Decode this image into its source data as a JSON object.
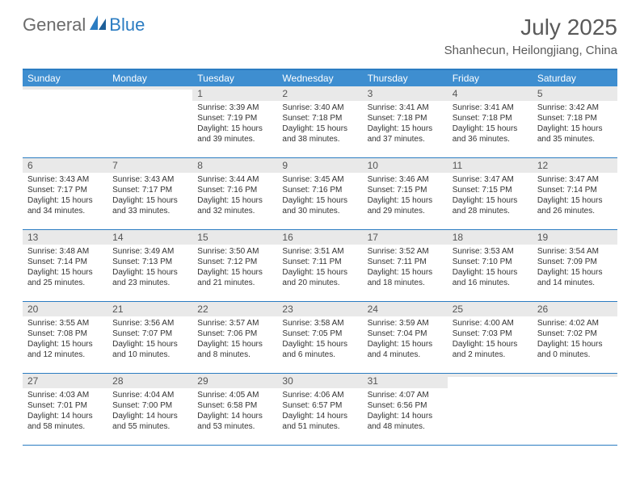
{
  "brand": {
    "part1": "General",
    "part2": "Blue"
  },
  "title": "July 2025",
  "location": "Shanhecun, Heilongjiang, China",
  "colors": {
    "header_bg": "#3e8ed0",
    "border": "#2b7cc2",
    "daynum_bg": "#e9e9e9",
    "text_muted": "#5a5a5a",
    "text_body": "#333333"
  },
  "weekdays": [
    "Sunday",
    "Monday",
    "Tuesday",
    "Wednesday",
    "Thursday",
    "Friday",
    "Saturday"
  ],
  "weeks": [
    [
      {
        "n": "",
        "sunrise": "",
        "sunset": "",
        "daylight1": "",
        "daylight2": ""
      },
      {
        "n": "",
        "sunrise": "",
        "sunset": "",
        "daylight1": "",
        "daylight2": ""
      },
      {
        "n": "1",
        "sunrise": "Sunrise: 3:39 AM",
        "sunset": "Sunset: 7:19 PM",
        "daylight1": "Daylight: 15 hours",
        "daylight2": "and 39 minutes."
      },
      {
        "n": "2",
        "sunrise": "Sunrise: 3:40 AM",
        "sunset": "Sunset: 7:18 PM",
        "daylight1": "Daylight: 15 hours",
        "daylight2": "and 38 minutes."
      },
      {
        "n": "3",
        "sunrise": "Sunrise: 3:41 AM",
        "sunset": "Sunset: 7:18 PM",
        "daylight1": "Daylight: 15 hours",
        "daylight2": "and 37 minutes."
      },
      {
        "n": "4",
        "sunrise": "Sunrise: 3:41 AM",
        "sunset": "Sunset: 7:18 PM",
        "daylight1": "Daylight: 15 hours",
        "daylight2": "and 36 minutes."
      },
      {
        "n": "5",
        "sunrise": "Sunrise: 3:42 AM",
        "sunset": "Sunset: 7:18 PM",
        "daylight1": "Daylight: 15 hours",
        "daylight2": "and 35 minutes."
      }
    ],
    [
      {
        "n": "6",
        "sunrise": "Sunrise: 3:43 AM",
        "sunset": "Sunset: 7:17 PM",
        "daylight1": "Daylight: 15 hours",
        "daylight2": "and 34 minutes."
      },
      {
        "n": "7",
        "sunrise": "Sunrise: 3:43 AM",
        "sunset": "Sunset: 7:17 PM",
        "daylight1": "Daylight: 15 hours",
        "daylight2": "and 33 minutes."
      },
      {
        "n": "8",
        "sunrise": "Sunrise: 3:44 AM",
        "sunset": "Sunset: 7:16 PM",
        "daylight1": "Daylight: 15 hours",
        "daylight2": "and 32 minutes."
      },
      {
        "n": "9",
        "sunrise": "Sunrise: 3:45 AM",
        "sunset": "Sunset: 7:16 PM",
        "daylight1": "Daylight: 15 hours",
        "daylight2": "and 30 minutes."
      },
      {
        "n": "10",
        "sunrise": "Sunrise: 3:46 AM",
        "sunset": "Sunset: 7:15 PM",
        "daylight1": "Daylight: 15 hours",
        "daylight2": "and 29 minutes."
      },
      {
        "n": "11",
        "sunrise": "Sunrise: 3:47 AM",
        "sunset": "Sunset: 7:15 PM",
        "daylight1": "Daylight: 15 hours",
        "daylight2": "and 28 minutes."
      },
      {
        "n": "12",
        "sunrise": "Sunrise: 3:47 AM",
        "sunset": "Sunset: 7:14 PM",
        "daylight1": "Daylight: 15 hours",
        "daylight2": "and 26 minutes."
      }
    ],
    [
      {
        "n": "13",
        "sunrise": "Sunrise: 3:48 AM",
        "sunset": "Sunset: 7:14 PM",
        "daylight1": "Daylight: 15 hours",
        "daylight2": "and 25 minutes."
      },
      {
        "n": "14",
        "sunrise": "Sunrise: 3:49 AM",
        "sunset": "Sunset: 7:13 PM",
        "daylight1": "Daylight: 15 hours",
        "daylight2": "and 23 minutes."
      },
      {
        "n": "15",
        "sunrise": "Sunrise: 3:50 AM",
        "sunset": "Sunset: 7:12 PM",
        "daylight1": "Daylight: 15 hours",
        "daylight2": "and 21 minutes."
      },
      {
        "n": "16",
        "sunrise": "Sunrise: 3:51 AM",
        "sunset": "Sunset: 7:11 PM",
        "daylight1": "Daylight: 15 hours",
        "daylight2": "and 20 minutes."
      },
      {
        "n": "17",
        "sunrise": "Sunrise: 3:52 AM",
        "sunset": "Sunset: 7:11 PM",
        "daylight1": "Daylight: 15 hours",
        "daylight2": "and 18 minutes."
      },
      {
        "n": "18",
        "sunrise": "Sunrise: 3:53 AM",
        "sunset": "Sunset: 7:10 PM",
        "daylight1": "Daylight: 15 hours",
        "daylight2": "and 16 minutes."
      },
      {
        "n": "19",
        "sunrise": "Sunrise: 3:54 AM",
        "sunset": "Sunset: 7:09 PM",
        "daylight1": "Daylight: 15 hours",
        "daylight2": "and 14 minutes."
      }
    ],
    [
      {
        "n": "20",
        "sunrise": "Sunrise: 3:55 AM",
        "sunset": "Sunset: 7:08 PM",
        "daylight1": "Daylight: 15 hours",
        "daylight2": "and 12 minutes."
      },
      {
        "n": "21",
        "sunrise": "Sunrise: 3:56 AM",
        "sunset": "Sunset: 7:07 PM",
        "daylight1": "Daylight: 15 hours",
        "daylight2": "and 10 minutes."
      },
      {
        "n": "22",
        "sunrise": "Sunrise: 3:57 AM",
        "sunset": "Sunset: 7:06 PM",
        "daylight1": "Daylight: 15 hours",
        "daylight2": "and 8 minutes."
      },
      {
        "n": "23",
        "sunrise": "Sunrise: 3:58 AM",
        "sunset": "Sunset: 7:05 PM",
        "daylight1": "Daylight: 15 hours",
        "daylight2": "and 6 minutes."
      },
      {
        "n": "24",
        "sunrise": "Sunrise: 3:59 AM",
        "sunset": "Sunset: 7:04 PM",
        "daylight1": "Daylight: 15 hours",
        "daylight2": "and 4 minutes."
      },
      {
        "n": "25",
        "sunrise": "Sunrise: 4:00 AM",
        "sunset": "Sunset: 7:03 PM",
        "daylight1": "Daylight: 15 hours",
        "daylight2": "and 2 minutes."
      },
      {
        "n": "26",
        "sunrise": "Sunrise: 4:02 AM",
        "sunset": "Sunset: 7:02 PM",
        "daylight1": "Daylight: 15 hours",
        "daylight2": "and 0 minutes."
      }
    ],
    [
      {
        "n": "27",
        "sunrise": "Sunrise: 4:03 AM",
        "sunset": "Sunset: 7:01 PM",
        "daylight1": "Daylight: 14 hours",
        "daylight2": "and 58 minutes."
      },
      {
        "n": "28",
        "sunrise": "Sunrise: 4:04 AM",
        "sunset": "Sunset: 7:00 PM",
        "daylight1": "Daylight: 14 hours",
        "daylight2": "and 55 minutes."
      },
      {
        "n": "29",
        "sunrise": "Sunrise: 4:05 AM",
        "sunset": "Sunset: 6:58 PM",
        "daylight1": "Daylight: 14 hours",
        "daylight2": "and 53 minutes."
      },
      {
        "n": "30",
        "sunrise": "Sunrise: 4:06 AM",
        "sunset": "Sunset: 6:57 PM",
        "daylight1": "Daylight: 14 hours",
        "daylight2": "and 51 minutes."
      },
      {
        "n": "31",
        "sunrise": "Sunrise: 4:07 AM",
        "sunset": "Sunset: 6:56 PM",
        "daylight1": "Daylight: 14 hours",
        "daylight2": "and 48 minutes."
      },
      {
        "n": "",
        "sunrise": "",
        "sunset": "",
        "daylight1": "",
        "daylight2": ""
      },
      {
        "n": "",
        "sunrise": "",
        "sunset": "",
        "daylight1": "",
        "daylight2": ""
      }
    ]
  ]
}
